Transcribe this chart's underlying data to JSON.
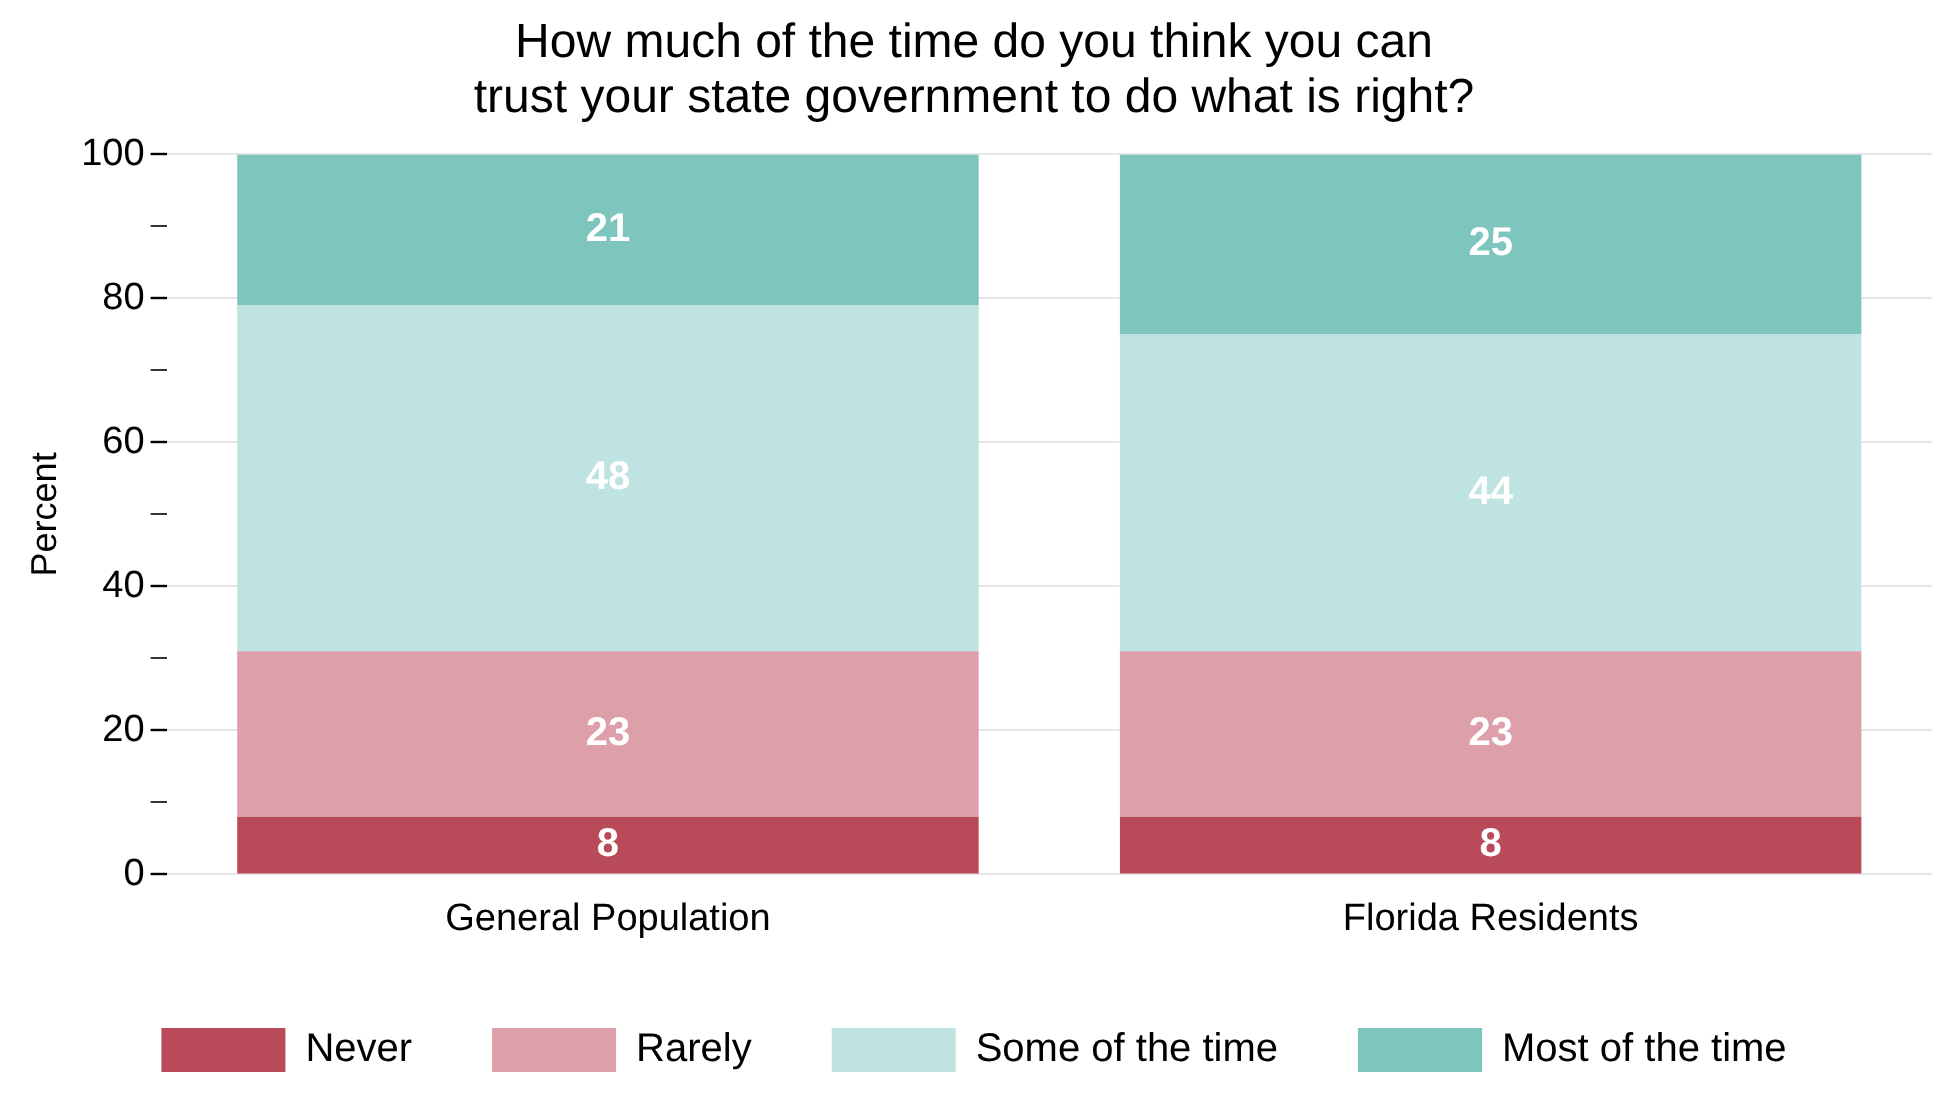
{
  "chart_data": {
    "type": "bar",
    "title": "How much of the time do you think you can\ntrust your state government to do what is right?",
    "ylabel": "Percent",
    "categories": [
      "General Population",
      "Florida Residents"
    ],
    "series": [
      {
        "name": "Never",
        "color": "#b94a5a",
        "values": [
          8,
          8
        ]
      },
      {
        "name": "Rarely",
        "color": "#dda0aa",
        "values": [
          23,
          23
        ]
      },
      {
        "name": "Some of the time",
        "color": "#bfe3e0",
        "values": [
          48,
          44
        ]
      },
      {
        "name": "Most of the time",
        "color": "#7dc5bd",
        "values": [
          21,
          25
        ]
      }
    ],
    "stacked": true,
    "data_labels": true,
    "ylim": [
      0,
      100
    ],
    "yticks": [
      0,
      {
        "value": 10,
        "label": null
      },
      20,
      {
        "value": 30,
        "label": null
      },
      40,
      {
        "value": 50,
        "label": null
      },
      60,
      {
        "value": 70,
        "label": null
      },
      80,
      {
        "value": 90,
        "label": null
      },
      100
    ],
    "grid": "y",
    "legend": "bottom"
  }
}
